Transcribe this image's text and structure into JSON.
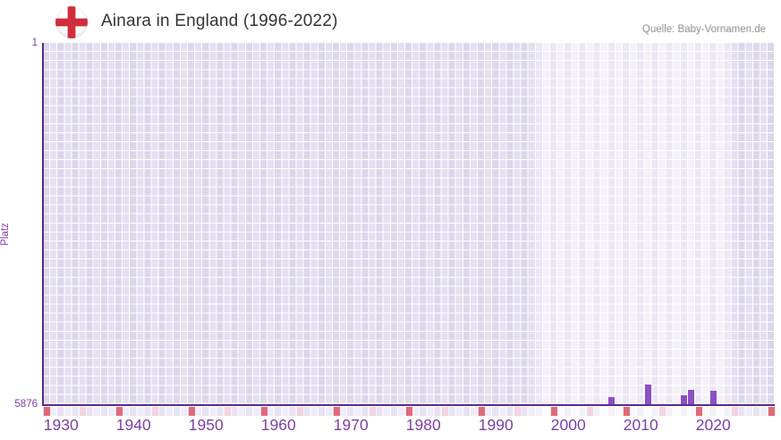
{
  "header": {
    "title": "Ainara in England (1996-2022)",
    "source": "Quelle: Baby-Vornamen.de",
    "flag_icon": "england-flag-icon"
  },
  "chart_data": {
    "type": "bar",
    "title": "Ainara in England (1996-2022)",
    "xlabel": "",
    "ylabel": "Platz",
    "y_axis": {
      "top_tick_label": "1",
      "bottom_tick_label": "5876",
      "min_rank": 1,
      "max_rank": 5876,
      "inverted": true,
      "note": "rank 1 at top, taller bar = better rank"
    },
    "x_axis": {
      "first_year": 1928,
      "last_year": 2028,
      "tick_labels": [
        "1930",
        "1940",
        "1950",
        "1960",
        "1970",
        "1980",
        "1990",
        "2000",
        "2010",
        "2020"
      ]
    },
    "highlight_period": {
      "from_year": 1996,
      "to_year": 2022
    },
    "bars": [
      {
        "year": 2006,
        "rank": 5760
      },
      {
        "year": 2011,
        "rank": 5565
      },
      {
        "year": 2016,
        "rank": 5740
      },
      {
        "year": 2017,
        "rank": 5650
      },
      {
        "year": 2020,
        "rank": 5665
      }
    ],
    "bottom_tick_marks": {
      "dark_years": [
        1928,
        1938,
        1948,
        1958,
        1968,
        1978,
        1988,
        1998,
        2008,
        2018,
        2028
      ],
      "light_years": [
        1933,
        1943,
        1953,
        1963,
        1973,
        1983,
        1993,
        2003,
        2013,
        2023
      ]
    },
    "colors": {
      "bar": "#8a50c4",
      "axis": "#5b2b90",
      "grid_cell": "#e4e0f0",
      "highlight_cell": "#f4f1fb",
      "dark_mark": "#e06a78",
      "light_mark": "#f1d4de",
      "tick_label": "#7d3fa6",
      "title_text": "#33333d",
      "source_text": "#8f8f93",
      "flag_red": "#cf2e3c"
    },
    "legend": null,
    "grid": "on"
  }
}
